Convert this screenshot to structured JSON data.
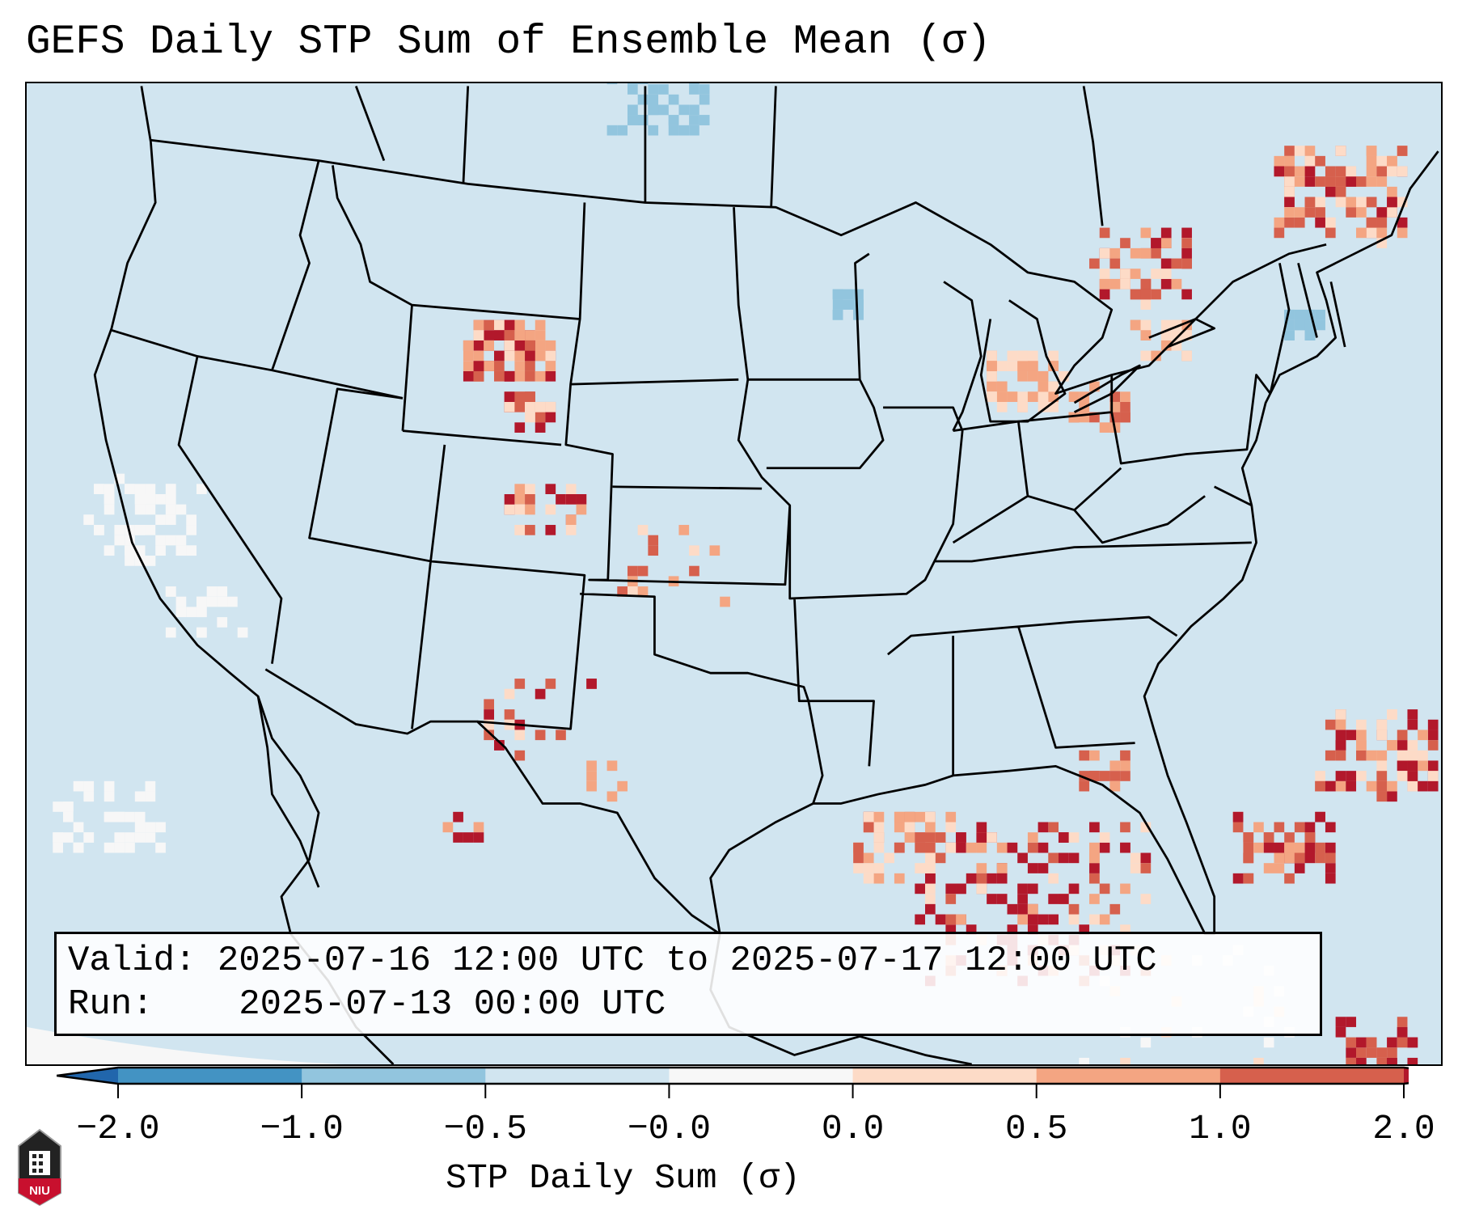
{
  "title": "GEFS Daily STP Sum of Ensemble Mean (σ)",
  "info": {
    "valid_label": "Valid:",
    "valid_value": "2025-07-16 12:00 UTC to 2025-07-17 12:00 UTC",
    "run_label": "Run:",
    "run_value": "2025-07-13 00:00 UTC"
  },
  "logo_text": "NIU",
  "chart_data": {
    "type": "heatmap",
    "title": "GEFS Daily STP Sum of Ensemble Mean (σ)",
    "colorbar": {
      "label": "STP Daily Sum (σ)",
      "ticks": [
        "−2.0",
        "−1.0",
        "−0.5",
        "−0.0",
        "0.0",
        "0.5",
        "1.0",
        "2.0"
      ],
      "bins": [
        {
          "from": -2.0,
          "to": -1.0,
          "color": "#4393c3"
        },
        {
          "from": -1.0,
          "to": -0.5,
          "color": "#92c5de"
        },
        {
          "from": -0.5,
          "to": -0.0,
          "color": "#d1e5f0"
        },
        {
          "from": -0.0,
          "to": 0.0,
          "color": "#f7f7f7"
        },
        {
          "from": 0.0,
          "to": 0.5,
          "color": "#fddbc7"
        },
        {
          "from": 0.5,
          "to": 1.0,
          "color": "#f4a582"
        },
        {
          "from": 1.0,
          "to": 2.0,
          "color": "#d6604d"
        }
      ],
      "extend_min_color": "#2166ac",
      "extend_max_color": "#b2182b",
      "extend": "both"
    },
    "background_color": "#d1e5f0",
    "region": "Contiguous United States",
    "highlights": [
      "Wyoming / Montana",
      "Great Lakes / Michigan",
      "Southern Quebec / New England",
      "Gulf of Mexico / Florida",
      "Western Atlantic"
    ]
  }
}
